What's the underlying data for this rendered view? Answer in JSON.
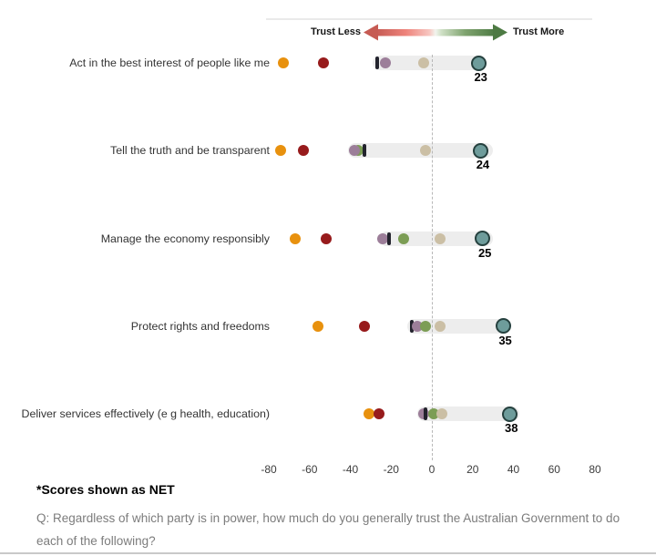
{
  "legend": {
    "left_label": "Trust Less",
    "right_label": "Trust More",
    "arrow": {
      "red_head": "#C65B53",
      "green_head": "#4D7A43",
      "gradient": [
        "#C65B54",
        "#EE837B",
        "#F7C7C2",
        "#F2F4EE",
        "#CFE0C6",
        "#7FA36F",
        "#4E7B44"
      ]
    }
  },
  "footnote": "*Scores shown as NET",
  "question": "Q: Regardless of which party is in power, how much do you generally trust the Australian Government to do each of the following?",
  "chart_data": {
    "type": "scatter",
    "title": "",
    "xlabel": "",
    "x_axis": {
      "min": -80,
      "max": 80,
      "tick_values": [
        -80,
        -60,
        -40,
        -20,
        0,
        20,
        40,
        60,
        80
      ],
      "tick_labels": [
        "-80",
        "-60",
        "-40",
        "-20",
        "0",
        "20",
        "40",
        "60",
        "80"
      ],
      "zero_line": "dashed"
    },
    "series_colors": {
      "orange": "#E8910E",
      "dark_red": "#971B1C",
      "purple": "#9C7E99",
      "green": "#7C9D55",
      "beige": "#CBBFA5",
      "tick": "#23232D",
      "net_fill": "#6E9C9B",
      "net_stroke": "#26413F",
      "bar": "#EDEDED"
    },
    "rows": [
      {
        "label": "Act in the best interest of people like me",
        "net": 23,
        "bar": {
          "from": -29,
          "to": 26
        },
        "dots": [
          {
            "series": "orange",
            "value": -73
          },
          {
            "series": "dark_red",
            "value": -53
          },
          {
            "series": "tick",
            "value": -27
          },
          {
            "series": "purple",
            "value": -23
          },
          {
            "series": "beige",
            "value": -4
          }
        ]
      },
      {
        "label": "Tell the truth and be transparent",
        "net": 24,
        "bar": {
          "from": -41,
          "to": 30
        },
        "dots": [
          {
            "series": "orange",
            "value": -74
          },
          {
            "series": "dark_red",
            "value": -63
          },
          {
            "series": "green",
            "value": -36
          },
          {
            "series": "purple",
            "value": -38
          },
          {
            "series": "tick",
            "value": -33
          },
          {
            "series": "beige",
            "value": -3
          }
        ]
      },
      {
        "label": "Manage the economy responsibly",
        "net": 25,
        "bar": {
          "from": -26,
          "to": 30
        },
        "dots": [
          {
            "series": "orange",
            "value": -67
          },
          {
            "series": "dark_red",
            "value": -52
          },
          {
            "series": "purple",
            "value": -24
          },
          {
            "series": "tick",
            "value": -21
          },
          {
            "series": "green",
            "value": -14
          },
          {
            "series": "beige",
            "value": 4
          }
        ]
      },
      {
        "label": "Protect rights and freedoms",
        "net": 35,
        "bar": {
          "from": -12,
          "to": 39
        },
        "dots": [
          {
            "series": "orange",
            "value": -56
          },
          {
            "series": "dark_red",
            "value": -33
          },
          {
            "series": "tick",
            "value": -10
          },
          {
            "series": "purple",
            "value": -7
          },
          {
            "series": "green",
            "value": -3
          },
          {
            "series": "beige",
            "value": 4
          }
        ]
      },
      {
        "label": "Deliver services effectively (e g  health, education)",
        "net": 38,
        "bar": {
          "from": -7,
          "to": 43
        },
        "dots": [
          {
            "series": "orange",
            "value": -31
          },
          {
            "series": "dark_red",
            "value": -26
          },
          {
            "series": "purple",
            "value": -4
          },
          {
            "series": "tick",
            "value": -3
          },
          {
            "series": "green",
            "value": 1
          },
          {
            "series": "beige",
            "value": 5
          }
        ]
      }
    ]
  }
}
